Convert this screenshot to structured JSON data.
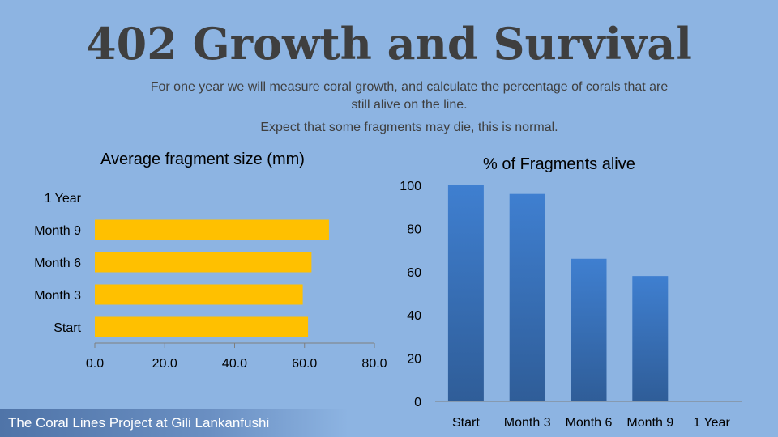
{
  "slide": {
    "title": "402 Growth and Survival",
    "description_line1": "For one year we will measure coral growth, and calculate the percentage of corals that are",
    "description_line2": "still alive on the line.",
    "description_line3": "Expect that some fragments may die, this is normal.",
    "footer": "The Coral Lines Project at Gili Lankanfushi"
  },
  "colors": {
    "background": "#8db4e2",
    "bar_left": "#ffc000",
    "bar_right": "#3a6db0"
  },
  "chart_data": [
    {
      "type": "bar",
      "orientation": "horizontal",
      "title": "Average fragment size (mm)",
      "categories": [
        "Start",
        "Month 3",
        "Month 6",
        "Month 9",
        "1 Year"
      ],
      "values": [
        61,
        59.5,
        62,
        67,
        null
      ],
      "xlim": [
        0,
        80
      ],
      "xticks": [
        "0.0",
        "20.0",
        "40.0",
        "60.0",
        "80.0"
      ],
      "xtick_values": [
        0,
        20,
        40,
        60,
        80
      ],
      "grid": false
    },
    {
      "type": "bar",
      "orientation": "vertical",
      "title": "% of Fragments alive",
      "categories": [
        "Start",
        "Month 3",
        "Month 6",
        "Month 9",
        "1 Year"
      ],
      "values": [
        100,
        96,
        66,
        58,
        null
      ],
      "ylim": [
        0,
        100
      ],
      "yticks": [
        "0",
        "20",
        "40",
        "60",
        "80",
        "100"
      ],
      "ytick_values": [
        0,
        20,
        40,
        60,
        80,
        100
      ],
      "grid": false
    }
  ]
}
